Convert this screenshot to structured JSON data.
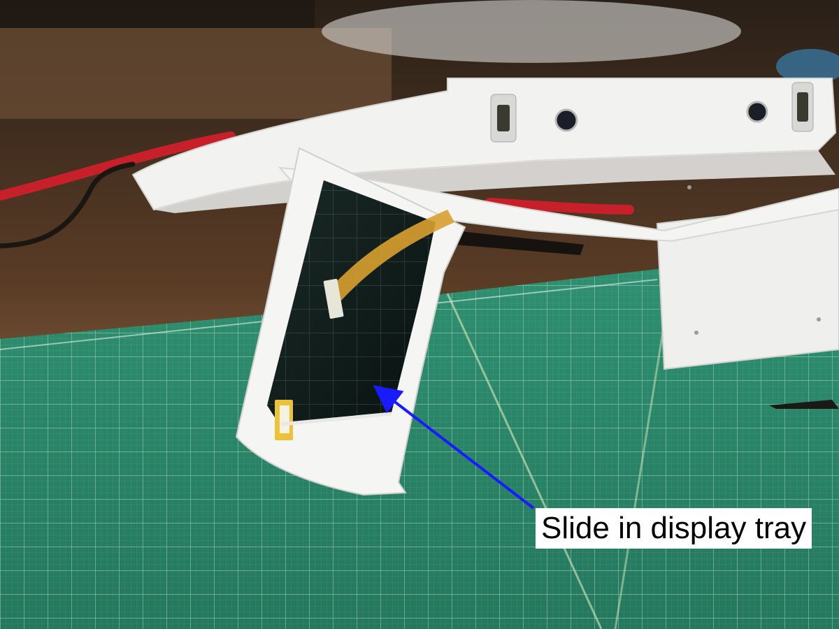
{
  "annotation": {
    "label": "Slide in display tray",
    "arrow_color": "#1a1aff"
  },
  "colors": {
    "mat": "#2e8c6e",
    "mat_dark": "#1f6e55",
    "grid_line": "#cfe8dc",
    "desk": "#5a3c26",
    "frame_white": "#f2f2f0",
    "display_glass": "#0d1a18",
    "cable_red": "#c8202a",
    "flex_cable": "#d9a030"
  }
}
